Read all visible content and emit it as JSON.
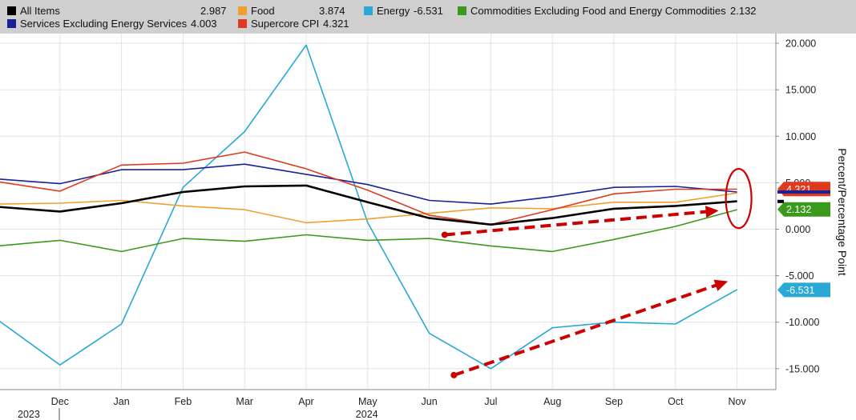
{
  "chart_data": {
    "type": "line",
    "ylabel": "Percent/Percentage Point",
    "ylim": [
      -18,
      21
    ],
    "yticks": [
      20,
      15,
      10,
      5,
      0,
      -5,
      -10,
      -15
    ],
    "ytick_labels": [
      "20.000",
      "15.000",
      "10.000",
      "5.000",
      "0.000",
      "-5.000",
      "-10.000",
      "-15.000"
    ],
    "x": [
      "Nov",
      "Dec",
      "Jan",
      "Feb",
      "Mar",
      "Apr",
      "May",
      "Jun",
      "Jul",
      "Aug",
      "Sep",
      "Oct",
      "Nov"
    ],
    "x_tick_labels": [
      "",
      "Dec",
      "Jan",
      "Feb",
      "Mar",
      "Apr",
      "May",
      "Jun",
      "Jul",
      "Aug",
      "Sep",
      "Oct",
      "Nov"
    ],
    "year_labels": [
      {
        "label": "2023",
        "index": 0
      },
      {
        "label": "2024",
        "index": 6
      }
    ],
    "grid": true,
    "legend_position": "top",
    "series": [
      {
        "name": "All Items",
        "last_label": "2.987",
        "color": "#000000",
        "width": 2.6,
        "values": [
          2.4,
          1.9,
          2.8,
          4.0,
          4.6,
          4.7,
          2.9,
          1.2,
          0.5,
          1.2,
          2.2,
          2.5,
          3.0
        ]
      },
      {
        "name": "Food",
        "last_label": "3.874",
        "color": "#f0a030",
        "width": 1.6,
        "values": [
          2.7,
          2.8,
          3.1,
          2.5,
          2.1,
          0.7,
          1.1,
          1.7,
          2.3,
          2.2,
          2.9,
          2.9,
          3.9
        ]
      },
      {
        "name": "Energy",
        "last_label": "-6.531",
        "color": "#2aa8d6",
        "width": 1.6,
        "values": [
          -9.8,
          -14.6,
          -10.2,
          4.5,
          10.5,
          19.8,
          0.7,
          -11.2,
          -15.0,
          -10.6,
          -10.0,
          -10.2,
          -6.5
        ]
      },
      {
        "name": "Commodities Excluding Food and Energy Commodities",
        "last_label": "2.132",
        "color": "#3a9a1c",
        "width": 1.6,
        "values": [
          -1.8,
          -1.2,
          -2.4,
          -1.0,
          -1.3,
          -0.6,
          -1.2,
          -1.0,
          -1.8,
          -2.4,
          -1.1,
          0.3,
          2.1
        ]
      },
      {
        "name": "Services Excluding Energy Services",
        "last_label": "4.003",
        "color": "#1a2196",
        "width": 1.6,
        "values": [
          5.4,
          4.9,
          6.4,
          6.4,
          7.0,
          5.9,
          4.8,
          3.1,
          2.7,
          3.5,
          4.5,
          4.6,
          4.0
        ]
      },
      {
        "name": "Supercore CPI",
        "last_label": "4.321",
        "color": "#e03a1e",
        "width": 1.6,
        "values": [
          5.1,
          4.1,
          6.9,
          7.1,
          8.3,
          6.5,
          4.2,
          1.5,
          0.5,
          2.1,
          3.8,
          4.3,
          4.3
        ]
      }
    ],
    "badges": [
      {
        "label": "4.321",
        "color": "#e03a1e",
        "value": 4.321
      },
      {
        "label": "2.132",
        "color": "#3a9a1c",
        "value": 2.132
      },
      {
        "label": "-6.531",
        "color": "#2aa8d6",
        "value": -6.531
      }
    ]
  },
  "annotations": {
    "circle_color": "#cc0000",
    "arrow_color": "#cc0000",
    "circle": {
      "index": 12,
      "value_center": 3.3
    },
    "arrows": [
      {
        "from": {
          "index": 7.25,
          "value": -0.6
        },
        "to": {
          "index": 11.7,
          "value": 2.0
        }
      },
      {
        "from": {
          "index": 7.4,
          "value": -15.7
        },
        "to": {
          "index": 11.85,
          "value": -5.6
        }
      }
    ]
  }
}
